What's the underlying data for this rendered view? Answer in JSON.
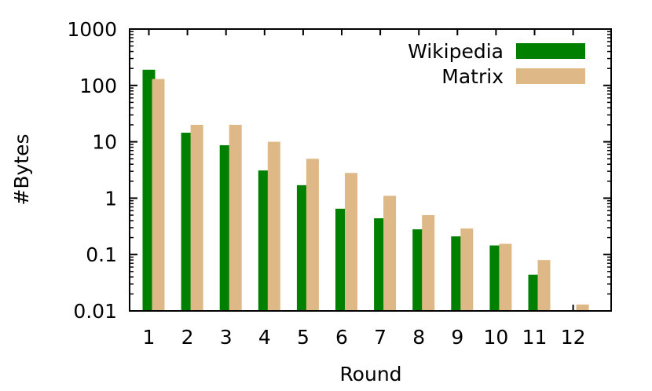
{
  "chart_data": {
    "type": "bar",
    "yscale": "log",
    "xlabel": "Round",
    "ylabel": "#Bytes",
    "ylim": [
      0.01,
      1000
    ],
    "yticks": [
      "0.01",
      "0.1",
      "1",
      "10",
      "100",
      "1000"
    ],
    "categories": [
      "1",
      "2",
      "3",
      "4",
      "5",
      "6",
      "7",
      "8",
      "9",
      "10",
      "11",
      "12"
    ],
    "legend_position": "top-right",
    "series": [
      {
        "name": "Wikipedia",
        "color": "#008000",
        "values": [
          190,
          14.5,
          8.7,
          3.1,
          1.7,
          0.65,
          0.44,
          0.28,
          0.21,
          0.145,
          0.044,
          null
        ]
      },
      {
        "name": "Matrix",
        "color": "#deb887",
        "values": [
          130,
          20,
          20,
          10,
          5,
          2.8,
          1.1,
          0.5,
          0.29,
          0.155,
          0.08,
          0.013
        ]
      }
    ]
  }
}
